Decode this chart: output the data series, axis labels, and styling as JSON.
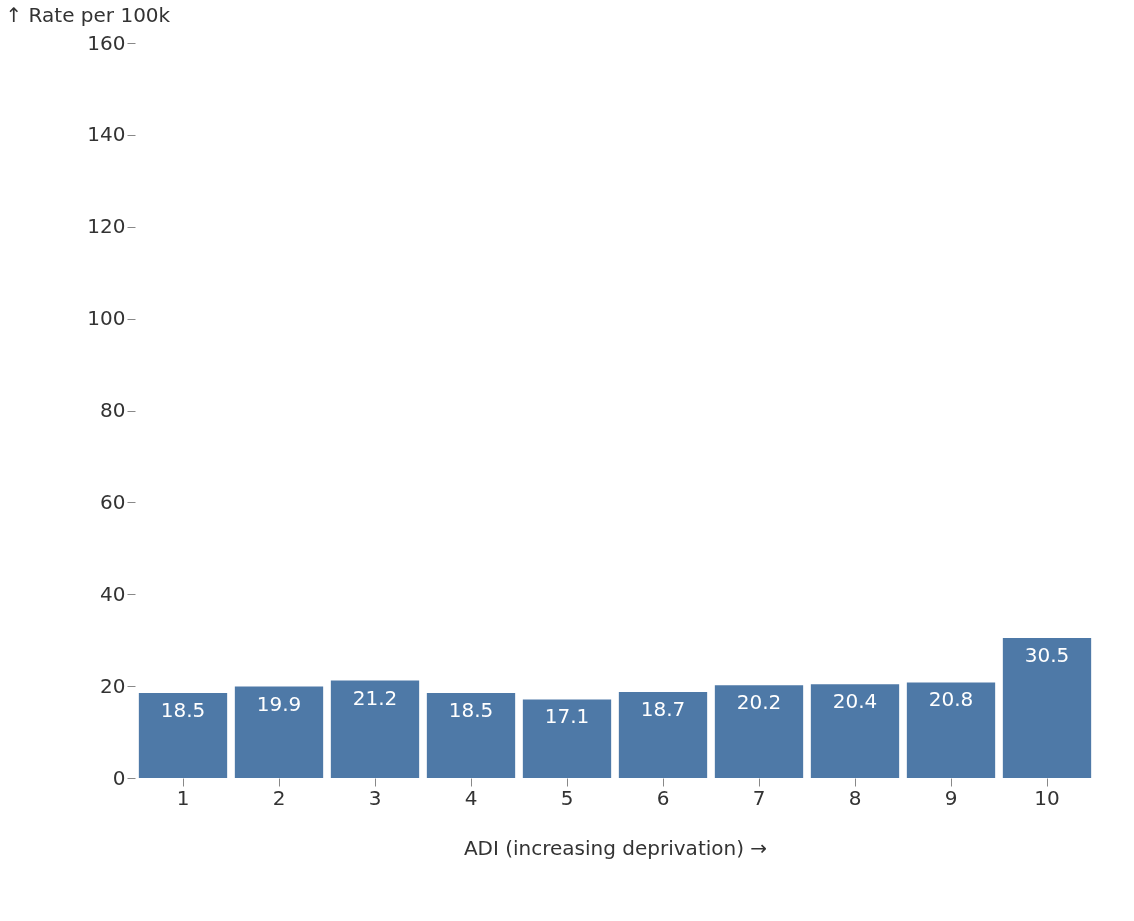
{
  "chart_data": {
    "type": "bar",
    "xlabel": "ADI (increasing deprivation) →",
    "ylabel": "↑ Rate per 100k",
    "categories": [
      "1",
      "2",
      "3",
      "4",
      "5",
      "6",
      "7",
      "8",
      "9",
      "10"
    ],
    "values": [
      18.5,
      19.9,
      21.2,
      18.5,
      17.1,
      18.7,
      20.2,
      20.4,
      20.8,
      30.5
    ],
    "color": "#4e79a7",
    "ylim": [
      0,
      160
    ],
    "yticks": [
      0,
      20,
      40,
      60,
      80,
      100,
      120,
      140,
      160
    ],
    "grid": false,
    "data_labels": true
  }
}
